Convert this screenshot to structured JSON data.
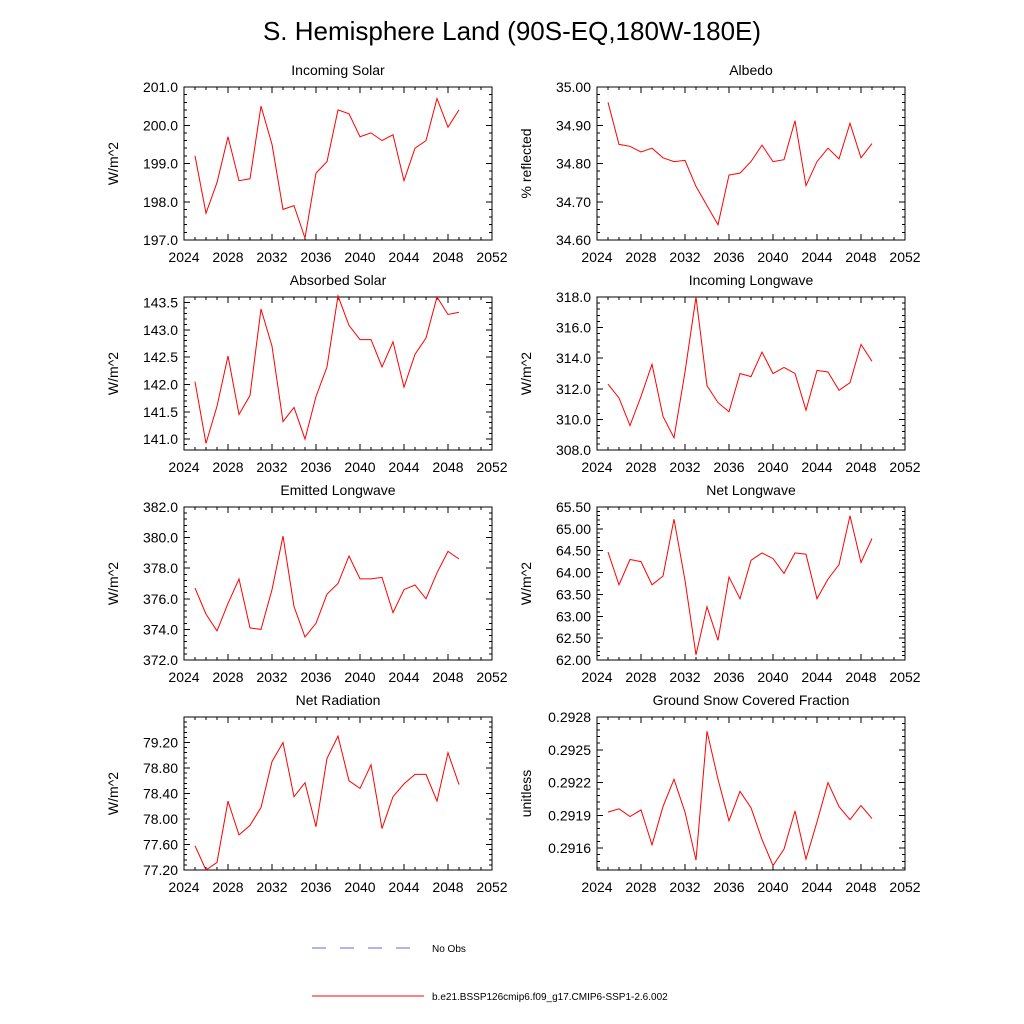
{
  "title": "S. Hemisphere Land (90S-EQ,180W-180E)",
  "colors": {
    "model": "#ff0000",
    "obs": "#6a6ad8"
  },
  "legend": [
    {
      "label": "No Obs",
      "style": "dashed",
      "color": "#6a6ad8"
    },
    {
      "label": "b.e21.BSSP126cmip6.f09_g17.CMIP6-SSP1-2.6.002",
      "style": "solid",
      "color": "#ff0000"
    }
  ],
  "chart_data": [
    {
      "type": "line",
      "title": "Incoming Solar",
      "ylabel": "W/m^2",
      "xlim": [
        2024,
        2052
      ],
      "xticks": [
        "2024",
        "2028",
        "2032",
        "2036",
        "2040",
        "2044",
        "2048",
        "2052"
      ],
      "ylim": [
        197.0,
        201.0
      ],
      "yticks": [
        "197.0",
        "198.0",
        "199.0",
        "200.0",
        "201.0"
      ],
      "x": [
        2025,
        2026,
        2027,
        2028,
        2029,
        2030,
        2031,
        2032,
        2033,
        2034,
        2035,
        2036,
        2037,
        2038,
        2039,
        2040,
        2041,
        2042,
        2043,
        2044,
        2045,
        2046,
        2047,
        2048,
        2049
      ],
      "series": [
        {
          "name": "b.e21.BSSP126cmip6.f09_g17.CMIP6-SSP1-2.6.002",
          "values": [
            199.2,
            197.7,
            198.5,
            199.7,
            198.55,
            198.6,
            200.5,
            199.5,
            197.8,
            197.9,
            197.05,
            198.75,
            199.05,
            200.4,
            200.3,
            199.7,
            199.8,
            199.6,
            199.75,
            198.55,
            199.4,
            199.6,
            200.7,
            199.95,
            200.4
          ]
        }
      ]
    },
    {
      "type": "line",
      "title": "Albedo",
      "ylabel": "% reflected",
      "xlim": [
        2024,
        2052
      ],
      "xticks": [
        "2024",
        "2028",
        "2032",
        "2036",
        "2040",
        "2044",
        "2048",
        "2052"
      ],
      "ylim": [
        34.6,
        35.0
      ],
      "yticks": [
        "34.60",
        "34.70",
        "34.80",
        "34.90",
        "35.00"
      ],
      "x": [
        2025,
        2026,
        2027,
        2028,
        2029,
        2030,
        2031,
        2032,
        2033,
        2034,
        2035,
        2036,
        2037,
        2038,
        2039,
        2040,
        2041,
        2042,
        2043,
        2044,
        2045,
        2046,
        2047,
        2048,
        2049
      ],
      "series": [
        {
          "name": "b.e21.BSSP126cmip6.f09_g17.CMIP6-SSP1-2.6.002",
          "values": [
            34.96,
            34.85,
            34.845,
            34.83,
            34.84,
            34.815,
            34.805,
            34.808,
            34.74,
            34.69,
            34.64,
            34.77,
            34.775,
            34.805,
            34.848,
            34.805,
            34.81,
            34.912,
            34.742,
            34.805,
            34.84,
            34.812,
            34.905,
            34.815,
            34.852
          ]
        }
      ]
    },
    {
      "type": "line",
      "title": "Absorbed Solar",
      "ylabel": "W/m^2",
      "xlim": [
        2024,
        2052
      ],
      "xticks": [
        "2024",
        "2028",
        "2032",
        "2036",
        "2040",
        "2044",
        "2048",
        "2052"
      ],
      "ylim": [
        140.8,
        143.6
      ],
      "yticks": [
        "141.0",
        "141.5",
        "142.0",
        "142.5",
        "143.0",
        "143.5"
      ],
      "x": [
        2025,
        2026,
        2027,
        2028,
        2029,
        2030,
        2031,
        2032,
        2033,
        2034,
        2035,
        2036,
        2037,
        2038,
        2039,
        2040,
        2041,
        2042,
        2043,
        2044,
        2045,
        2046,
        2047,
        2048,
        2049
      ],
      "series": [
        {
          "name": "b.e21.BSSP126cmip6.f09_g17.CMIP6-SSP1-2.6.002",
          "values": [
            142.05,
            140.92,
            141.6,
            142.52,
            141.45,
            141.8,
            143.38,
            142.7,
            141.32,
            141.58,
            141.0,
            141.78,
            142.32,
            143.62,
            143.08,
            142.82,
            142.82,
            142.32,
            142.78,
            141.95,
            142.55,
            142.85,
            143.6,
            143.28,
            143.32
          ]
        }
      ]
    },
    {
      "type": "line",
      "title": "Incoming Longwave",
      "ylabel": "W/m^2",
      "xlim": [
        2024,
        2052
      ],
      "xticks": [
        "2024",
        "2028",
        "2032",
        "2036",
        "2040",
        "2044",
        "2048",
        "2052"
      ],
      "ylim": [
        308.0,
        318.0
      ],
      "yticks": [
        "308.0",
        "310.0",
        "312.0",
        "314.0",
        "316.0",
        "318.0"
      ],
      "x": [
        2025,
        2026,
        2027,
        2028,
        2029,
        2030,
        2031,
        2032,
        2033,
        2034,
        2035,
        2036,
        2037,
        2038,
        2039,
        2040,
        2041,
        2042,
        2043,
        2044,
        2045,
        2046,
        2047,
        2048,
        2049
      ],
      "series": [
        {
          "name": "b.e21.BSSP126cmip6.f09_g17.CMIP6-SSP1-2.6.002",
          "values": [
            312.3,
            311.4,
            309.6,
            311.5,
            313.6,
            310.2,
            308.8,
            313.1,
            318.0,
            312.2,
            311.1,
            310.5,
            313.0,
            312.8,
            314.4,
            313.0,
            313.4,
            313.0,
            310.6,
            313.2,
            313.1,
            311.9,
            312.4,
            314.9,
            313.8
          ]
        }
      ]
    },
    {
      "type": "line",
      "title": "Emitted Longwave",
      "ylabel": "W/m^2",
      "xlim": [
        2024,
        2052
      ],
      "xticks": [
        "2024",
        "2028",
        "2032",
        "2036",
        "2040",
        "2044",
        "2048",
        "2052"
      ],
      "ylim": [
        372.0,
        382.0
      ],
      "yticks": [
        "372.0",
        "374.0",
        "376.0",
        "378.0",
        "380.0",
        "382.0"
      ],
      "x": [
        2025,
        2026,
        2027,
        2028,
        2029,
        2030,
        2031,
        2032,
        2033,
        2034,
        2035,
        2036,
        2037,
        2038,
        2039,
        2040,
        2041,
        2042,
        2043,
        2044,
        2045,
        2046,
        2047,
        2048,
        2049
      ],
      "series": [
        {
          "name": "b.e21.BSSP126cmip6.f09_g17.CMIP6-SSP1-2.6.002",
          "values": [
            376.7,
            375.0,
            373.9,
            375.7,
            377.3,
            374.1,
            374.0,
            376.6,
            380.1,
            375.5,
            373.5,
            374.4,
            376.3,
            377.0,
            378.8,
            377.3,
            377.3,
            377.4,
            375.1,
            376.6,
            376.9,
            376.0,
            377.7,
            379.1,
            378.6
          ]
        }
      ]
    },
    {
      "type": "line",
      "title": "Net Longwave",
      "ylabel": "W/m^2",
      "xlim": [
        2024,
        2052
      ],
      "xticks": [
        "2024",
        "2028",
        "2032",
        "2036",
        "2040",
        "2044",
        "2048",
        "2052"
      ],
      "ylim": [
        62.0,
        65.5
      ],
      "yticks": [
        "62.00",
        "62.50",
        "63.00",
        "63.50",
        "64.00",
        "64.50",
        "65.00",
        "65.50"
      ],
      "x": [
        2025,
        2026,
        2027,
        2028,
        2029,
        2030,
        2031,
        2032,
        2033,
        2034,
        2035,
        2036,
        2037,
        2038,
        2039,
        2040,
        2041,
        2042,
        2043,
        2044,
        2045,
        2046,
        2047,
        2048,
        2049
      ],
      "series": [
        {
          "name": "b.e21.BSSP126cmip6.f09_g17.CMIP6-SSP1-2.6.002",
          "values": [
            64.47,
            63.72,
            64.3,
            64.25,
            63.72,
            63.92,
            65.22,
            63.82,
            62.12,
            63.22,
            62.45,
            63.9,
            63.4,
            64.28,
            64.45,
            64.32,
            63.98,
            64.45,
            64.42,
            63.4,
            63.85,
            64.18,
            65.3,
            64.23,
            64.78
          ]
        }
      ]
    },
    {
      "type": "line",
      "title": "Net Radiation",
      "ylabel": "W/m^2",
      "xlim": [
        2024,
        2052
      ],
      "xticks": [
        "2024",
        "2028",
        "2032",
        "2036",
        "2040",
        "2044",
        "2048",
        "2052"
      ],
      "ylim": [
        77.2,
        79.6
      ],
      "yticks": [
        "77.20",
        "77.60",
        "78.00",
        "78.40",
        "78.80",
        "79.20"
      ],
      "x": [
        2025,
        2026,
        2027,
        2028,
        2029,
        2030,
        2031,
        2032,
        2033,
        2034,
        2035,
        2036,
        2037,
        2038,
        2039,
        2040,
        2041,
        2042,
        2043,
        2044,
        2045,
        2046,
        2047,
        2048,
        2049
      ],
      "series": [
        {
          "name": "b.e21.BSSP126cmip6.f09_g17.CMIP6-SSP1-2.6.002",
          "values": [
            77.58,
            77.2,
            77.32,
            78.28,
            77.75,
            77.9,
            78.18,
            78.9,
            79.2,
            78.35,
            78.57,
            77.88,
            78.95,
            79.3,
            78.6,
            78.48,
            78.85,
            77.85,
            78.35,
            78.55,
            78.7,
            78.7,
            78.28,
            79.04,
            78.54
          ]
        }
      ]
    },
    {
      "type": "line",
      "title": "Ground Snow Covered Fraction",
      "ylabel": "unitless",
      "xlim": [
        2024,
        2052
      ],
      "xticks": [
        "2024",
        "2028",
        "2032",
        "2036",
        "2040",
        "2044",
        "2048",
        "2052"
      ],
      "ylim": [
        0.2914,
        0.2928
      ],
      "yticks": [
        "0.2916",
        "0.2919",
        "0.2922",
        "0.2925",
        "0.2928"
      ],
      "x": [
        2025,
        2026,
        2027,
        2028,
        2029,
        2030,
        2031,
        2032,
        2033,
        2034,
        2035,
        2036,
        2037,
        2038,
        2039,
        2040,
        2041,
        2042,
        2043,
        2044,
        2045,
        2046,
        2047,
        2048,
        2049
      ],
      "series": [
        {
          "name": "b.e21.BSSP126cmip6.f09_g17.CMIP6-SSP1-2.6.002",
          "values": [
            0.29193,
            0.29196,
            0.29189,
            0.29195,
            0.29163,
            0.29198,
            0.29223,
            0.29193,
            0.29149,
            0.29267,
            0.29223,
            0.29185,
            0.29212,
            0.29197,
            0.29168,
            0.29144,
            0.29159,
            0.29194,
            0.2915,
            0.29184,
            0.2922,
            0.29198,
            0.29186,
            0.29199,
            0.29187
          ]
        }
      ]
    }
  ]
}
